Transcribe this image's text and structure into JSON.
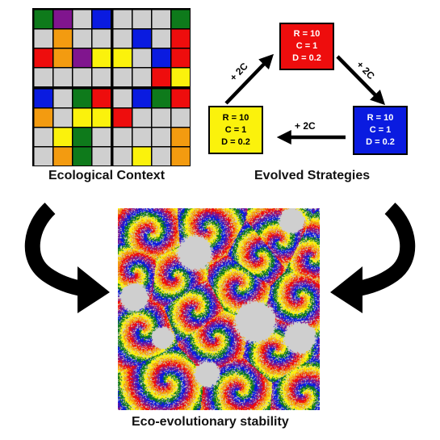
{
  "labels": {
    "ecological_context": "Ecological Context",
    "evolved_strategies": "Evolved Strategies",
    "eco_evolutionary_stability": "Eco-evolutionary stability"
  },
  "colors": {
    "green": "#0e7a1b",
    "purple": "#80158e",
    "gray": "#cfcfcf",
    "blue": "#0a1be0",
    "orange": "#f39b10",
    "red": "#ee0d0d",
    "yellow": "#fbf20c"
  },
  "grid": {
    "rows": [
      [
        "green",
        "purple",
        "gray",
        "blue",
        "gray",
        "gray",
        "gray",
        "green"
      ],
      [
        "gray",
        "orange",
        "gray",
        "gray",
        "gray",
        "blue",
        "gray",
        "red"
      ],
      [
        "red",
        "orange",
        "purple",
        "yellow",
        "yellow",
        "gray",
        "blue",
        "red"
      ],
      [
        "gray",
        "gray",
        "gray",
        "gray",
        "gray",
        "gray",
        "red",
        "yellow"
      ],
      [
        "blue",
        "gray",
        "green",
        "red",
        "gray",
        "blue",
        "green",
        "red"
      ],
      [
        "orange",
        "gray",
        "yellow",
        "yellow",
        "red",
        "gray",
        "gray",
        "gray"
      ],
      [
        "gray",
        "yellow",
        "green",
        "gray",
        "gray",
        "gray",
        "gray",
        "orange"
      ],
      [
        "gray",
        "orange",
        "green",
        "gray",
        "gray",
        "yellow",
        "gray",
        "orange"
      ]
    ]
  },
  "strategies": {
    "red": {
      "lines": [
        "R = 10",
        "C = 1",
        "D = 0.2"
      ],
      "color": "#ee0d0d",
      "text_color": "#ffffff"
    },
    "blue": {
      "lines": [
        "R = 10",
        "C = 1",
        "D = 0.2"
      ],
      "color": "#0a1be0",
      "text_color": "#ffffff"
    },
    "yellow": {
      "lines": [
        "R = 10",
        "C = 1",
        "D = 0.2"
      ],
      "color": "#fbf20c",
      "text_color": "#000000"
    }
  },
  "arrows": {
    "yellow_to_red": "+ 2C",
    "red_to_blue": "+ 2C",
    "blue_to_yellow": "+ 2C"
  },
  "simulation": {
    "background": "#cfcfcf",
    "spiral_colors": [
      "red",
      "orange",
      "yellow",
      "green",
      "blue",
      "purple"
    ]
  }
}
